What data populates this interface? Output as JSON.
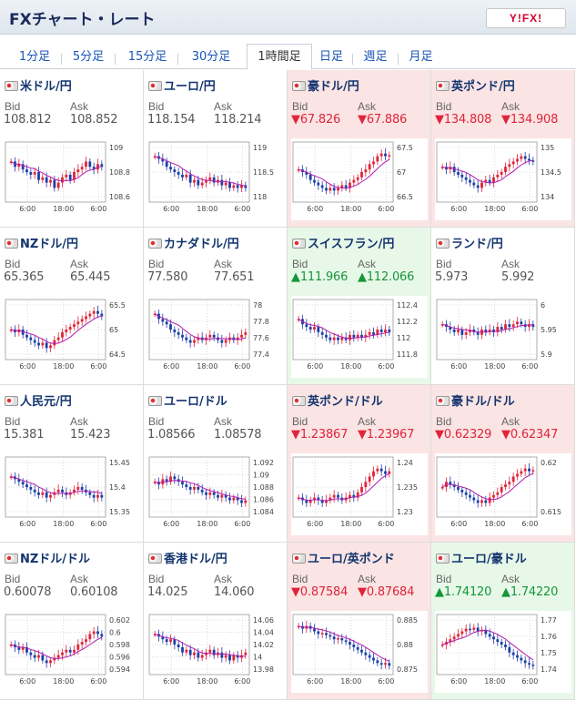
{
  "header": {
    "title": "FXチャート・レート",
    "logo_text": "Y!FX!"
  },
  "tabs": [
    {
      "label": "1分足",
      "active": false
    },
    {
      "label": "5分足",
      "active": false
    },
    {
      "label": "15分足",
      "active": false
    },
    {
      "label": "30分足",
      "active": false
    },
    {
      "label": "1時間足",
      "active": true
    },
    {
      "label": "日足",
      "active": false
    },
    {
      "label": "週足",
      "active": false
    },
    {
      "label": "月足",
      "active": false
    }
  ],
  "colors": {
    "up": "#16963a",
    "down": "#e0243a",
    "candle_up": "#e0243a",
    "candle_down": "#1c3fa8",
    "ma": "#b01cb0"
  },
  "labels": {
    "bid": "Bid",
    "ask": "Ask"
  },
  "x_ticks": [
    "6:00",
    "18:00",
    "6:00"
  ],
  "pairs": [
    {
      "name": "米ドル/円",
      "bid": "108.812",
      "ask": "108.852",
      "state": "none",
      "y_ticks": [
        "109",
        "108.8",
        "108.6"
      ],
      "trend": [
        0.7,
        0.6,
        0.65,
        0.55,
        0.5,
        0.45,
        0.5,
        0.35,
        0.4,
        0.3,
        0.35,
        0.2,
        0.3,
        0.4,
        0.45,
        0.35,
        0.5,
        0.55,
        0.6,
        0.7,
        0.6,
        0.55,
        0.65,
        0.6
      ]
    },
    {
      "name": "ユーロ/円",
      "bid": "118.154",
      "ask": "118.214",
      "state": "none",
      "y_ticks": [
        "119",
        "118.5",
        "118"
      ],
      "trend": [
        0.8,
        0.75,
        0.7,
        0.6,
        0.55,
        0.5,
        0.45,
        0.4,
        0.45,
        0.3,
        0.35,
        0.25,
        0.3,
        0.35,
        0.4,
        0.3,
        0.35,
        0.25,
        0.3,
        0.2,
        0.25,
        0.2,
        0.25,
        0.2
      ]
    },
    {
      "name": "豪ドル/円",
      "bid": "67.826",
      "ask": "67.886",
      "state": "down",
      "y_ticks": [
        "67.5",
        "67",
        "66.5"
      ],
      "trend": [
        0.55,
        0.5,
        0.45,
        0.35,
        0.3,
        0.25,
        0.2,
        0.15,
        0.2,
        0.15,
        0.2,
        0.25,
        0.2,
        0.3,
        0.35,
        0.4,
        0.5,
        0.55,
        0.65,
        0.7,
        0.8,
        0.85,
        0.8,
        0.82
      ]
    },
    {
      "name": "英ポンド/円",
      "bid": "134.808",
      "ask": "134.908",
      "state": "down",
      "y_ticks": [
        "135",
        "134.5",
        "134"
      ],
      "trend": [
        0.6,
        0.55,
        0.6,
        0.5,
        0.45,
        0.4,
        0.35,
        0.3,
        0.25,
        0.2,
        0.3,
        0.35,
        0.3,
        0.4,
        0.45,
        0.5,
        0.6,
        0.65,
        0.7,
        0.75,
        0.8,
        0.75,
        0.72,
        0.7
      ]
    },
    {
      "name": "NZドル/円",
      "bid": "65.365",
      "ask": "65.445",
      "state": "none",
      "y_ticks": [
        "65.5",
        "65",
        "64.5"
      ],
      "trend": [
        0.5,
        0.45,
        0.5,
        0.4,
        0.35,
        0.3,
        0.25,
        0.2,
        0.25,
        0.15,
        0.2,
        0.3,
        0.35,
        0.45,
        0.5,
        0.55,
        0.6,
        0.65,
        0.7,
        0.75,
        0.8,
        0.85,
        0.8,
        0.75
      ]
    },
    {
      "name": "カナダドル/円",
      "bid": "77.580",
      "ask": "77.651",
      "state": "none",
      "y_ticks": [
        "78",
        "77.8",
        "77.6",
        "77.4"
      ],
      "trend": [
        0.8,
        0.7,
        0.65,
        0.6,
        0.5,
        0.45,
        0.4,
        0.35,
        0.3,
        0.25,
        0.3,
        0.35,
        0.3,
        0.35,
        0.4,
        0.35,
        0.3,
        0.25,
        0.3,
        0.35,
        0.3,
        0.35,
        0.4,
        0.45
      ]
    },
    {
      "name": "スイスフラン/円",
      "bid": "111.966",
      "ask": "112.066",
      "state": "up",
      "y_ticks": [
        "112.4",
        "112.2",
        "112",
        "111.8"
      ],
      "trend": [
        0.7,
        0.6,
        0.55,
        0.5,
        0.55,
        0.45,
        0.4,
        0.35,
        0.3,
        0.35,
        0.3,
        0.35,
        0.3,
        0.4,
        0.35,
        0.4,
        0.35,
        0.4,
        0.45,
        0.4,
        0.5,
        0.45,
        0.5,
        0.45
      ]
    },
    {
      "name": "ランド/円",
      "bid": "5.973",
      "ask": "5.992",
      "state": "none",
      "y_ticks": [
        "6",
        "5.95",
        "5.9"
      ],
      "trend": [
        0.6,
        0.55,
        0.5,
        0.45,
        0.5,
        0.4,
        0.45,
        0.5,
        0.45,
        0.4,
        0.5,
        0.45,
        0.5,
        0.45,
        0.55,
        0.5,
        0.6,
        0.55,
        0.6,
        0.65,
        0.6,
        0.55,
        0.6,
        0.55
      ]
    },
    {
      "name": "人民元/円",
      "bid": "15.381",
      "ask": "15.423",
      "state": "none",
      "y_ticks": [
        "15.45",
        "15.4",
        "15.35"
      ],
      "trend": [
        0.7,
        0.65,
        0.6,
        0.55,
        0.5,
        0.45,
        0.4,
        0.35,
        0.4,
        0.3,
        0.35,
        0.4,
        0.45,
        0.4,
        0.35,
        0.4,
        0.45,
        0.5,
        0.45,
        0.4,
        0.35,
        0.3,
        0.35,
        0.3
      ]
    },
    {
      "name": "ユーロ/ドル",
      "bid": "1.08566",
      "ask": "1.08578",
      "state": "none",
      "y_ticks": [
        "1.092",
        "1.09",
        "1.088",
        "1.086",
        "1.084"
      ],
      "trend": [
        0.6,
        0.55,
        0.65,
        0.6,
        0.7,
        0.65,
        0.6,
        0.55,
        0.5,
        0.45,
        0.5,
        0.45,
        0.4,
        0.35,
        0.4,
        0.35,
        0.3,
        0.35,
        0.3,
        0.25,
        0.3,
        0.25,
        0.2,
        0.25
      ]
    },
    {
      "name": "英ポンド/ドル",
      "bid": "1.23867",
      "ask": "1.23967",
      "state": "down",
      "y_ticks": [
        "1.24",
        "1.235",
        "1.23"
      ],
      "trend": [
        0.3,
        0.25,
        0.2,
        0.25,
        0.3,
        0.25,
        0.2,
        0.25,
        0.3,
        0.35,
        0.3,
        0.25,
        0.3,
        0.35,
        0.3,
        0.4,
        0.5,
        0.6,
        0.7,
        0.8,
        0.85,
        0.8,
        0.75,
        0.8
      ]
    },
    {
      "name": "豪ドル/ドル",
      "bid": "0.62329",
      "ask": "0.62347",
      "state": "down",
      "y_ticks": [
        "0.62",
        "0.615"
      ],
      "trend": [
        0.5,
        0.6,
        0.55,
        0.5,
        0.45,
        0.4,
        0.35,
        0.3,
        0.25,
        0.2,
        0.25,
        0.2,
        0.3,
        0.35,
        0.4,
        0.5,
        0.55,
        0.6,
        0.7,
        0.75,
        0.8,
        0.85,
        0.8,
        0.82
      ]
    },
    {
      "name": "NZドル/ドル",
      "bid": "0.60078",
      "ask": "0.60108",
      "state": "none",
      "y_ticks": [
        "0.602",
        "0.6",
        "0.598",
        "0.596",
        "0.594"
      ],
      "trend": [
        0.5,
        0.45,
        0.4,
        0.45,
        0.35,
        0.3,
        0.25,
        0.3,
        0.2,
        0.15,
        0.2,
        0.25,
        0.3,
        0.35,
        0.4,
        0.35,
        0.4,
        0.5,
        0.55,
        0.6,
        0.7,
        0.75,
        0.7,
        0.65
      ]
    },
    {
      "name": "香港ドル/円",
      "bid": "14.025",
      "ask": "14.060",
      "state": "none",
      "y_ticks": [
        "14.06",
        "14.04",
        "14.02",
        "14",
        "13.98"
      ],
      "trend": [
        0.7,
        0.65,
        0.6,
        0.55,
        0.6,
        0.5,
        0.45,
        0.35,
        0.4,
        0.3,
        0.35,
        0.25,
        0.3,
        0.35,
        0.4,
        0.3,
        0.35,
        0.25,
        0.3,
        0.2,
        0.3,
        0.25,
        0.3,
        0.35
      ]
    },
    {
      "name": "ユーロ/英ポンド",
      "bid": "0.87584",
      "ask": "0.87684",
      "state": "down",
      "y_ticks": [
        "0.885",
        "0.88",
        "0.875"
      ],
      "trend": [
        0.85,
        0.8,
        0.85,
        0.8,
        0.75,
        0.7,
        0.72,
        0.68,
        0.65,
        0.6,
        0.62,
        0.58,
        0.55,
        0.5,
        0.45,
        0.4,
        0.35,
        0.3,
        0.25,
        0.2,
        0.15,
        0.12,
        0.15,
        0.1
      ]
    },
    {
      "name": "ユーロ/豪ドル",
      "bid": "1.74120",
      "ask": "1.74220",
      "state": "up",
      "y_ticks": [
        "1.77",
        "1.76",
        "1.75",
        "1.74"
      ],
      "trend": [
        0.5,
        0.55,
        0.6,
        0.65,
        0.7,
        0.75,
        0.8,
        0.78,
        0.82,
        0.75,
        0.78,
        0.7,
        0.65,
        0.6,
        0.55,
        0.5,
        0.45,
        0.35,
        0.3,
        0.25,
        0.2,
        0.15,
        0.12,
        0.1
      ]
    }
  ]
}
